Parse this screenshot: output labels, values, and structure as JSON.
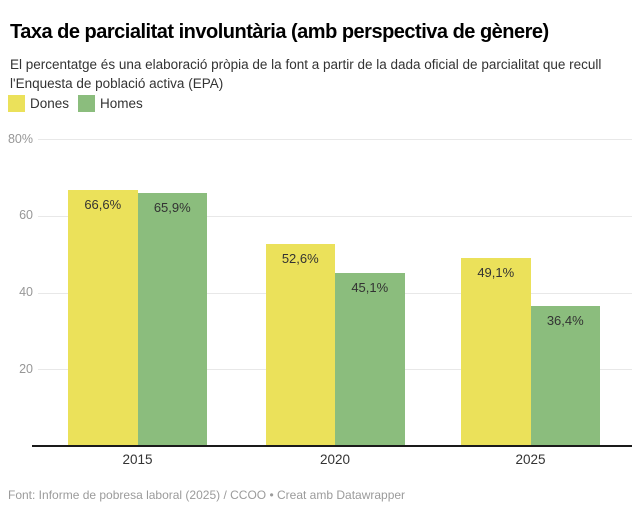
{
  "title": "Taxa de parcialitat involuntària (amb perspectiva de gènere)",
  "subtitle": "El percentatge és una elaboració pròpia de la font a partir de la dada oficial de parcialitat que recull l'Enquesta de població activa (EPA)",
  "footer": "Font: Informe de pobresa laboral (2025) / CCOO • Creat amb Datawrapper",
  "colors": {
    "dones": "#ebe15a",
    "homes": "#8bbd7d",
    "background": "#ffffff",
    "gridline": "#e8e8e8",
    "baseline": "#1a1a1a",
    "axis_text": "#979797",
    "label_text": "#333333"
  },
  "legend": [
    {
      "label": "Dones",
      "color": "#ebe15a"
    },
    {
      "label": "Homes",
      "color": "#8bbd7d"
    }
  ],
  "chart_data": {
    "type": "bar",
    "title": "Taxa de parcialitat involuntària (amb perspectiva de gènere)",
    "subtitle": "El percentatge és una elaboració pròpia de la font a partir de la dada oficial de parcialitat que recull l'Enquesta de població activa (EPA)",
    "categories": [
      "2015",
      "2020",
      "2025"
    ],
    "series": [
      {
        "name": "Dones",
        "color": "#ebe15a",
        "values": [
          66.6,
          52.6,
          49.1
        ],
        "labels": [
          "66,6%",
          "52,6%",
          "49,1%"
        ]
      },
      {
        "name": "Homes",
        "color": "#8bbd7d",
        "values": [
          65.9,
          45.1,
          36.4
        ],
        "labels": [
          "65,9%",
          "45,1%",
          "36,4%"
        ]
      }
    ],
    "xlabel": "",
    "ylabel": "",
    "ylim": [
      0,
      80
    ],
    "yticks": [
      {
        "value": 20,
        "label": "20"
      },
      {
        "value": 40,
        "label": "40"
      },
      {
        "value": 60,
        "label": "60"
      },
      {
        "value": 80,
        "label": "80%"
      }
    ],
    "grid": true,
    "legend_position": "top-left",
    "value_labels_inside_bars": true
  }
}
